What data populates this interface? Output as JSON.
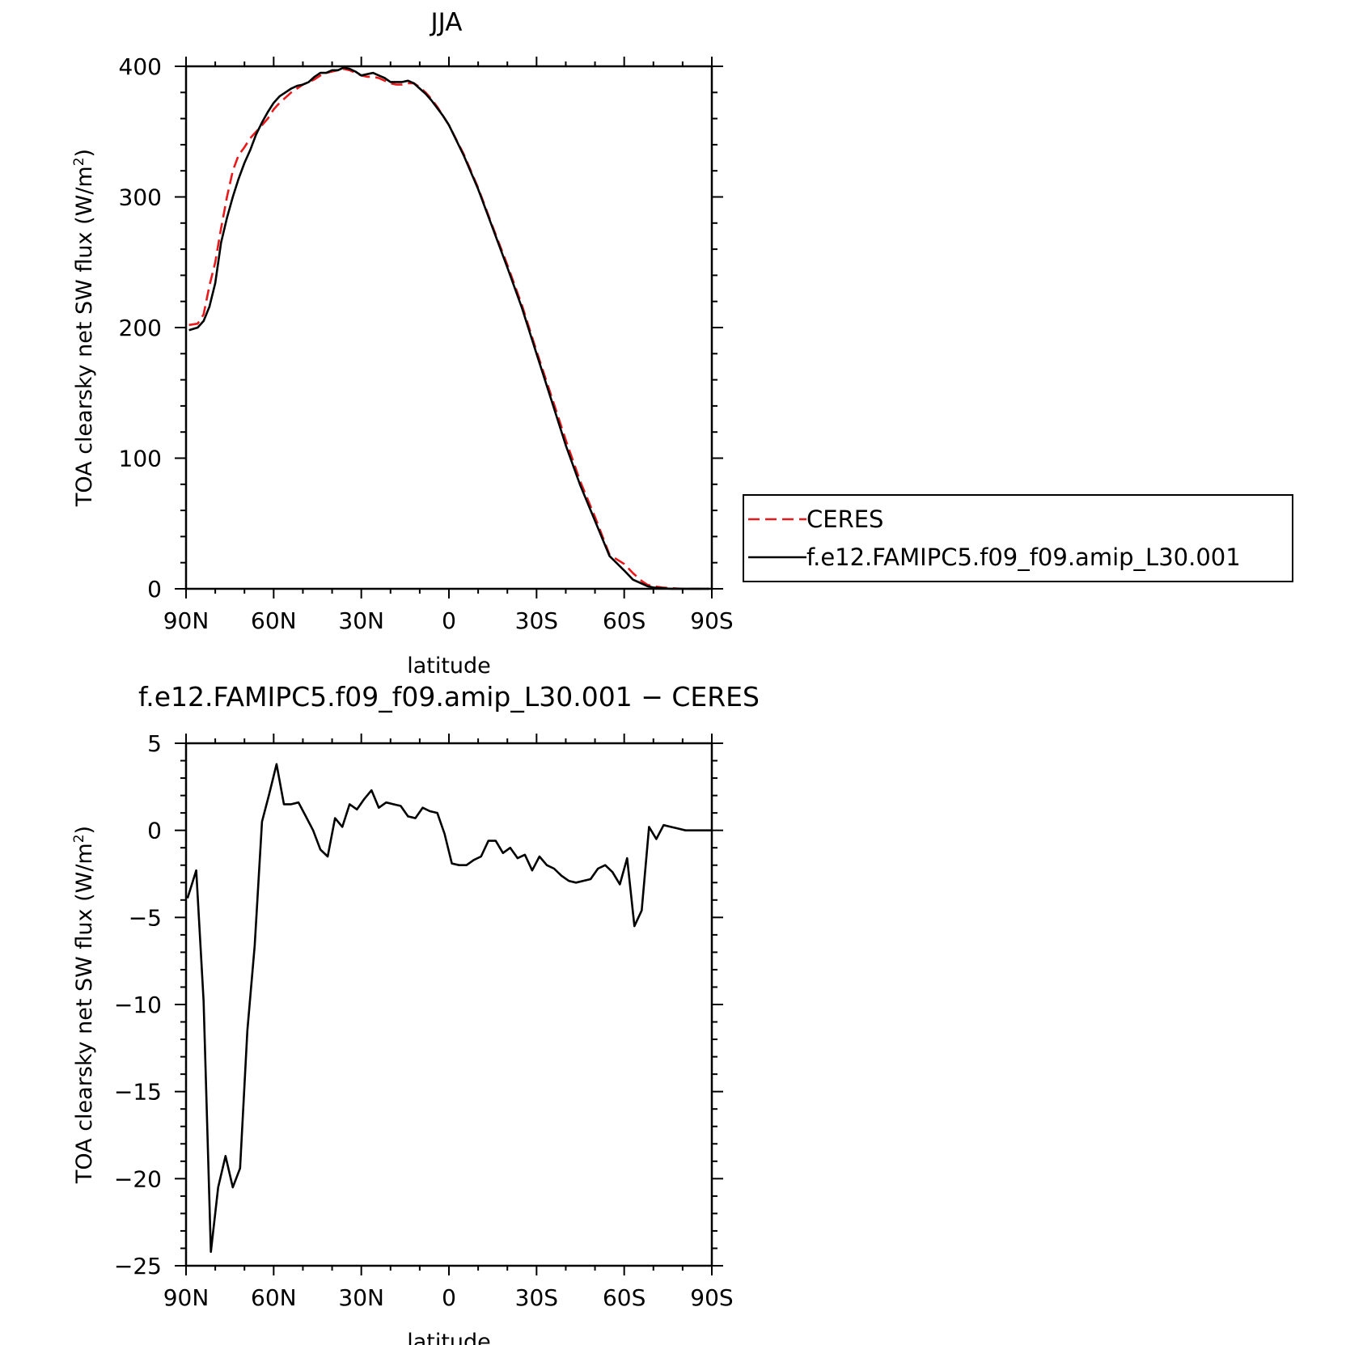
{
  "chart_data": [
    {
      "type": "line",
      "title": "JJA",
      "xlabel": "latitude",
      "ylabel": "TOA clearsky net SW flux (W/m",
      "ylabel_sup": "2",
      "ylabel_end": ")",
      "xlim": [
        90,
        -90
      ],
      "ylim": [
        0,
        400
      ],
      "x_ticks": [
        90,
        60,
        30,
        0,
        -30,
        -60,
        -90
      ],
      "x_tick_labels": [
        "90N",
        "60N",
        "30N",
        "0",
        "30S",
        "60S",
        "90S"
      ],
      "y_ticks": [
        0,
        100,
        200,
        300,
        400
      ],
      "y_tick_labels": [
        "0",
        "100",
        "200",
        "300",
        "400"
      ],
      "legend": {
        "placement": "right",
        "entries": [
          "CERES",
          "f.e12.FAMIPC5.f09_f09.amip_L30.001"
        ]
      },
      "series": [
        {
          "name": "CERES",
          "color": "#e8191b",
          "dash": "dashed",
          "x": [
            89,
            86,
            84,
            82,
            80,
            78,
            76,
            74,
            72,
            70,
            68,
            66,
            64,
            62,
            60,
            58,
            56,
            54,
            52,
            50,
            48,
            46,
            44,
            42,
            40,
            38,
            36,
            34,
            32,
            30,
            28,
            26,
            24,
            22,
            20,
            18,
            16,
            14,
            12,
            10,
            8,
            6,
            4,
            2,
            0,
            -5,
            -10,
            -15,
            -20,
            -25,
            -30,
            -35,
            -40,
            -45,
            -50,
            -55,
            -60,
            -63,
            -66,
            -68,
            -70,
            -73,
            -76,
            -80,
            -85,
            -89
          ],
          "y": [
            202,
            203,
            210,
            232,
            250,
            276,
            300,
            320,
            332,
            338,
            345,
            350,
            355,
            360,
            367,
            372,
            376,
            380,
            383,
            386,
            388,
            390,
            393,
            395,
            396,
            397,
            398,
            397,
            395,
            393,
            392,
            392,
            391,
            389,
            387,
            386,
            386,
            387,
            387,
            384,
            380,
            375,
            369,
            362,
            355,
            333,
            307,
            277,
            248,
            217,
            182,
            148,
            114,
            82,
            55,
            26,
            19,
            12,
            6,
            3,
            2,
            1,
            0.5,
            0,
            0,
            0
          ]
        },
        {
          "name": "f.e12.FAMIPC5.f09_f09.amip_L30.001",
          "color": "#000000",
          "dash": "solid",
          "x": [
            89,
            86,
            84,
            82,
            80,
            78,
            76,
            74,
            72,
            70,
            68,
            66,
            64,
            62,
            60,
            58,
            56,
            54,
            52,
            50,
            48,
            46,
            44,
            42,
            40,
            38,
            36,
            34,
            32,
            30,
            28,
            26,
            24,
            22,
            20,
            18,
            16,
            14,
            12,
            10,
            8,
            6,
            4,
            2,
            0,
            -5,
            -10,
            -15,
            -20,
            -25,
            -30,
            -35,
            -40,
            -45,
            -50,
            -55,
            -60,
            -63,
            -66,
            -68,
            -70,
            -73,
            -76,
            -80,
            -85,
            -89
          ],
          "y": [
            198,
            200,
            205,
            216,
            234,
            265,
            284,
            300,
            314,
            326,
            336,
            348,
            357,
            365,
            372,
            377,
            380,
            383,
            385,
            386,
            388,
            392,
            395,
            395,
            397,
            397,
            399,
            398,
            396,
            393,
            394,
            395,
            393,
            391,
            388,
            388,
            388,
            389,
            387,
            383,
            379,
            374,
            368,
            362,
            355,
            332,
            306,
            276,
            246,
            215,
            180,
            145,
            110,
            79,
            52,
            25,
            14,
            7,
            4,
            2,
            1,
            0.5,
            0,
            0,
            0,
            0
          ]
        }
      ]
    },
    {
      "type": "line",
      "title": "f.e12.FAMIPC5.f09_f09.amip_L30.001 − CERES",
      "xlabel": "latitude",
      "ylabel": "TOA clearsky net SW flux (W/m",
      "ylabel_sup": "2",
      "ylabel_end": ")",
      "xlim": [
        90,
        -90
      ],
      "ylim": [
        -25,
        5
      ],
      "x_ticks": [
        90,
        60,
        30,
        0,
        -30,
        -60,
        -90
      ],
      "x_tick_labels": [
        "90N",
        "60N",
        "30N",
        "0",
        "30S",
        "60S",
        "90S"
      ],
      "y_ticks": [
        5,
        0,
        -5,
        -10,
        -15,
        -20,
        -25
      ],
      "y_tick_labels": [
        "5",
        "0",
        "−5",
        "−10",
        "−15",
        "−20",
        "−25"
      ],
      "series": [
        {
          "color": "#000000",
          "dash": "solid",
          "x": [
            89.5,
            86.5,
            84,
            81.5,
            79,
            76.5,
            74,
            71.5,
            69,
            66.5,
            64,
            61.5,
            59,
            56.5,
            54,
            51.5,
            49,
            46.5,
            44,
            41.5,
            39,
            36.5,
            34,
            31.5,
            29,
            26.5,
            24,
            21.5,
            19,
            16.5,
            14,
            11.5,
            9,
            6.5,
            4,
            1.5,
            -1,
            -3.5,
            -6,
            -8.5,
            -11,
            -13.5,
            -16,
            -18.5,
            -21,
            -23.5,
            -26,
            -28.5,
            -31,
            -33.5,
            -36,
            -38.5,
            -41,
            -43.5,
            -46,
            -48.5,
            -51,
            -53.5,
            -56,
            -58.5,
            -61,
            -63.5,
            -66,
            -68.5,
            -71,
            -73.5,
            -76,
            -78.5,
            -81,
            -83.5,
            -86,
            -88.5,
            -90
          ],
          "y": [
            -3.9,
            -2.3,
            -9.8,
            -24.2,
            -20.5,
            -18.7,
            -20.5,
            -19.4,
            -11.5,
            -6.6,
            0.5,
            2.1,
            3.8,
            1.5,
            1.5,
            1.6,
            0.8,
            0.0,
            -1.1,
            -1.5,
            0.7,
            0.2,
            1.5,
            1.2,
            1.8,
            2.3,
            1.3,
            1.6,
            1.5,
            1.4,
            0.8,
            0.7,
            1.3,
            1.1,
            1.0,
            -0.2,
            -1.9,
            -2.0,
            -2.0,
            -1.7,
            -1.5,
            -0.6,
            -0.6,
            -1.3,
            -1.0,
            -1.6,
            -1.4,
            -2.3,
            -1.5,
            -2.0,
            -2.2,
            -2.6,
            -2.9,
            -3.0,
            -2.9,
            -2.8,
            -2.2,
            -2.0,
            -2.4,
            -3.1,
            -1.6,
            -5.5,
            -4.6,
            0.2,
            -0.5,
            0.3,
            0.2,
            0.1,
            0.0,
            0.0,
            0.0,
            0.0,
            0.0
          ]
        }
      ]
    }
  ]
}
